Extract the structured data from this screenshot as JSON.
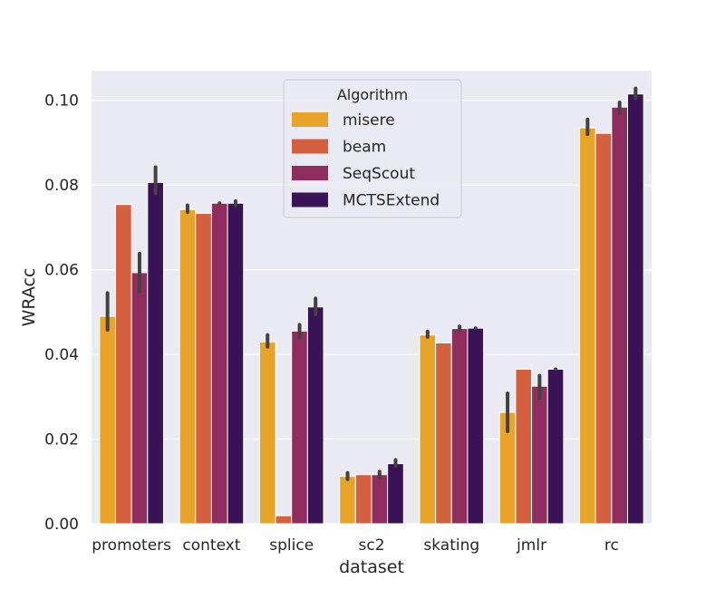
{
  "chart_data": {
    "type": "bar",
    "title": "",
    "xlabel": "dataset",
    "ylabel": "WRAcc",
    "categories": [
      "promoters",
      "context",
      "splice",
      "sc2",
      "skating",
      "jmlr",
      "rc"
    ],
    "ylim": [
      0,
      0.107
    ],
    "yticks": [
      "0.00",
      "0.02",
      "0.04",
      "0.06",
      "0.08",
      "0.10"
    ],
    "grid": true,
    "legend": {
      "title": "Algorithm",
      "placement": "top-center"
    },
    "series": [
      {
        "name": "misere",
        "color": "#e8a428",
        "values": [
          0.049,
          0.0742,
          0.0429,
          0.0112,
          0.0446,
          0.0263,
          0.0935
        ],
        "errors": [
          [
            0.0458,
            0.0545
          ],
          [
            0.0736,
            0.0752
          ],
          [
            0.0418,
            0.0446
          ],
          [
            0.0105,
            0.012
          ],
          [
            0.0441,
            0.0454
          ],
          [
            0.0218,
            0.0308
          ],
          [
            0.092,
            0.0955
          ]
        ]
      },
      {
        "name": "beam",
        "color": "#d3603f",
        "values": [
          0.0754,
          0.0733,
          0.0019,
          0.0116,
          0.0427,
          0.0365,
          0.0922
        ],
        "errors": null
      },
      {
        "name": "SeqScout",
        "color": "#8e2d5e",
        "values": [
          0.0593,
          0.0757,
          0.0455,
          0.0116,
          0.0461,
          0.0325,
          0.0984
        ],
        "errors": [
          [
            0.0548,
            0.0638
          ],
          [
            0.0757,
            0.0757
          ],
          [
            0.044,
            0.047
          ],
          [
            0.011,
            0.0123
          ],
          [
            0.0458,
            0.0466
          ],
          [
            0.0297,
            0.035
          ],
          [
            0.097,
            0.0995
          ]
        ]
      },
      {
        "name": "MCTSExtend",
        "color": "#3a1256",
        "values": [
          0.0806,
          0.0757,
          0.0512,
          0.0142,
          0.0462,
          0.0365,
          0.1015
        ],
        "errors": [
          [
            0.078,
            0.0842
          ],
          [
            0.0752,
            0.0762
          ],
          [
            0.0494,
            0.0532
          ],
          [
            0.0137,
            0.0151
          ],
          [
            0.0462,
            0.0462
          ],
          [
            0.0365,
            0.0365
          ],
          [
            0.1005,
            0.1028
          ]
        ]
      }
    ]
  }
}
